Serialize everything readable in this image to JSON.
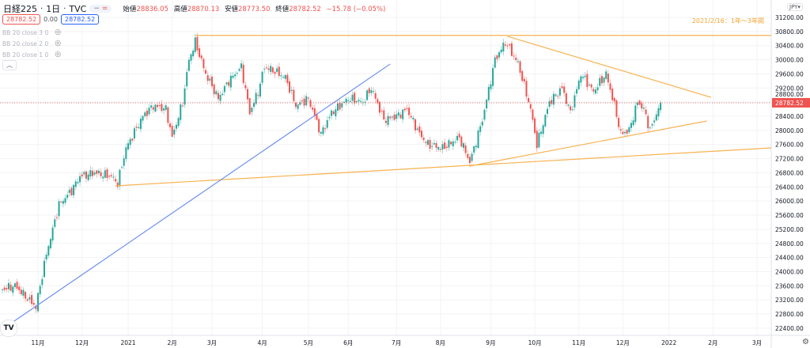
{
  "header": {
    "symbol": "日経225",
    "interval": "1日",
    "source": "TVC",
    "sep": "·",
    "ohlc": [
      {
        "label": "始値",
        "value": "28836.05"
      },
      {
        "label": "高値",
        "value": "28870.13"
      },
      {
        "label": "安値",
        "value": "28773.50"
      },
      {
        "label": "終値",
        "value": "28782.52"
      }
    ],
    "change": "−15.78 (−0.05%)",
    "pill_left": "−",
    "pill_right": "="
  },
  "quote": {
    "bid": "28782.52",
    "spread": "0.00",
    "ask": "28782.52"
  },
  "indicators": [
    {
      "label": "BB 20 close 3 0"
    },
    {
      "label": "BB 20 close 2 0"
    },
    {
      "label": "BB 20 close 1 0"
    }
  ],
  "collapse_icon": "chevron-up",
  "currency": "JPY",
  "currency_caret": "▾",
  "annotation": "2021/2/16：1年〜3年間",
  "logo_text": "TV",
  "colors": {
    "up": "#26a69a",
    "down": "#ef5350",
    "trend": "#f7b250",
    "blue": "#6d8ff0",
    "last": "#ef5350"
  },
  "chart_data": {
    "type": "candlestick",
    "x_unit": "trading-day index",
    "last_price": 28782.52,
    "last_price_label": "28782.52",
    "ylim": [
      22200,
      31700
    ],
    "yticks": [
      "31200.00",
      "30800.00",
      "30400.00",
      "30000.00",
      "29600.00",
      "29200.00",
      "28800.00",
      "28400.00",
      "28000.00",
      "27600.00",
      "27200.00",
      "26800.00",
      "26400.00",
      "26000.00",
      "25600.00",
      "25200.00",
      "24800.00",
      "24400.00",
      "24000.00",
      "23600.00",
      "23200.00",
      "22800.00",
      "22400.00"
    ],
    "xticks": [
      {
        "i": 17,
        "label": "11月"
      },
      {
        "i": 38,
        "label": "12月"
      },
      {
        "i": 60,
        "label": "2021"
      },
      {
        "i": 81,
        "label": "2月"
      },
      {
        "i": 100,
        "label": "3月"
      },
      {
        "i": 124,
        "label": "4月"
      },
      {
        "i": 146,
        "label": "5月"
      },
      {
        "i": 165,
        "label": "6月"
      },
      {
        "i": 188,
        "label": "7月"
      },
      {
        "i": 209,
        "label": "8月"
      },
      {
        "i": 233,
        "label": "9月"
      },
      {
        "i": 254,
        "label": "10月"
      },
      {
        "i": 275,
        "label": "11月"
      },
      {
        "i": 296,
        "label": "12月"
      },
      {
        "i": 318,
        "label": "2022"
      },
      {
        "i": 339,
        "label": "2月"
      },
      {
        "i": 360,
        "label": "3月"
      }
    ],
    "close_path": [
      [
        0,
        23500
      ],
      [
        6,
        23600
      ],
      [
        16,
        23000
      ],
      [
        21,
        24500
      ],
      [
        27,
        25900
      ],
      [
        33,
        26300
      ],
      [
        37,
        26700
      ],
      [
        44,
        26800
      ],
      [
        52,
        26700
      ],
      [
        55,
        26500
      ],
      [
        59,
        27500
      ],
      [
        67,
        28400
      ],
      [
        72,
        28700
      ],
      [
        78,
        28600
      ],
      [
        81,
        27800
      ],
      [
        86,
        28800
      ],
      [
        89,
        30000
      ],
      [
        92,
        30500
      ],
      [
        97,
        29600
      ],
      [
        103,
        28900
      ],
      [
        108,
        29400
      ],
      [
        114,
        29800
      ],
      [
        118,
        28500
      ],
      [
        122,
        29100
      ],
      [
        125,
        29800
      ],
      [
        129,
        29700
      ],
      [
        135,
        29500
      ],
      [
        140,
        28700
      ],
      [
        146,
        28900
      ],
      [
        152,
        27900
      ],
      [
        157,
        28500
      ],
      [
        165,
        28900
      ],
      [
        172,
        28800
      ],
      [
        176,
        29200
      ],
      [
        182,
        28300
      ],
      [
        188,
        28400
      ],
      [
        193,
        28600
      ],
      [
        199,
        27900
      ],
      [
        203,
        27600
      ],
      [
        210,
        27500
      ],
      [
        218,
        27800
      ],
      [
        223,
        27100
      ],
      [
        229,
        28300
      ],
      [
        235,
        30000
      ],
      [
        240,
        30500
      ],
      [
        246,
        29900
      ],
      [
        252,
        28600
      ],
      [
        255,
        27600
      ],
      [
        261,
        28800
      ],
      [
        267,
        29200
      ],
      [
        271,
        28500
      ],
      [
        276,
        29600
      ],
      [
        282,
        29100
      ],
      [
        288,
        29600
      ],
      [
        292,
        28700
      ],
      [
        295,
        27900
      ],
      [
        299,
        28000
      ],
      [
        303,
        28800
      ],
      [
        306,
        28600
      ],
      [
        309,
        28000
      ],
      [
        314,
        28782.52
      ]
    ],
    "drawings": [
      {
        "name": "resistance-horizontal",
        "color": "trend",
        "from": [
          92,
          30690
        ],
        "to": [
          385,
          30690
        ]
      },
      {
        "name": "long-support",
        "color": "trend",
        "from": [
          54,
          26430
        ],
        "to": [
          385,
          27505
        ]
      },
      {
        "name": "blue-trendline",
        "color": "blue",
        "from": [
          -1,
          22330
        ],
        "to": [
          185,
          29880
        ]
      },
      {
        "name": "descending-resistance",
        "color": "trend",
        "from": [
          241,
          30663
        ],
        "to": [
          338,
          28938
        ]
      },
      {
        "name": "rising-support",
        "color": "trend",
        "from": [
          223,
          26990
        ],
        "to": [
          336,
          28266
        ]
      }
    ]
  }
}
